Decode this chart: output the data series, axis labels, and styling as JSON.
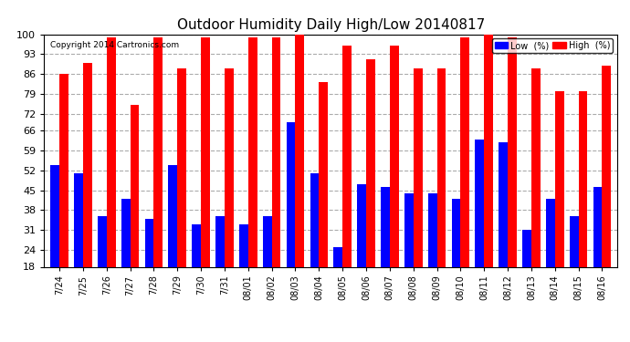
{
  "title": "Outdoor Humidity Daily High/Low 20140817",
  "copyright": "Copyright 2014 Cartronics.com",
  "dates": [
    "7/24",
    "7/25",
    "7/26",
    "7/27",
    "7/28",
    "7/29",
    "7/30",
    "7/31",
    "08/01",
    "08/02",
    "08/03",
    "08/04",
    "08/05",
    "08/06",
    "08/07",
    "08/08",
    "08/09",
    "08/10",
    "08/11",
    "08/12",
    "08/13",
    "08/14",
    "08/15",
    "08/16"
  ],
  "high": [
    86,
    90,
    99,
    75,
    99,
    88,
    99,
    88,
    99,
    99,
    100,
    83,
    96,
    91,
    96,
    88,
    88,
    99,
    100,
    99,
    88,
    80,
    80,
    89
  ],
  "low": [
    54,
    51,
    36,
    42,
    35,
    54,
    33,
    36,
    33,
    36,
    69,
    51,
    25,
    47,
    46,
    44,
    44,
    42,
    63,
    62,
    31,
    42,
    36,
    46
  ],
  "ylim": [
    18,
    100
  ],
  "yticks": [
    18,
    24,
    31,
    38,
    45,
    52,
    59,
    66,
    72,
    79,
    86,
    93,
    100
  ],
  "high_color": "#ff0000",
  "low_color": "#0000ff",
  "bg_color": "#ffffff",
  "grid_color": "#888888",
  "bar_width": 0.38,
  "figsize": [
    6.9,
    3.75
  ],
  "dpi": 100
}
